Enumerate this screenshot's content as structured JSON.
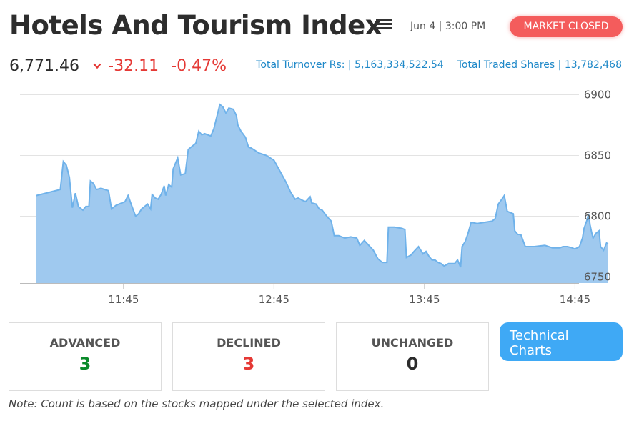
{
  "header": {
    "title": "Hotels And Tourism Index",
    "datetime": "Jun 4 | 3:00 PM",
    "status_badge": "MARKET CLOSED"
  },
  "price": {
    "value": "6,771.46",
    "change": "-32.11",
    "change_pct": "-0.47%"
  },
  "turnover": {
    "turnover_text": "Total Turnover Rs: | 5,163,334,522.54",
    "shares_text": "Total Traded Shares | 13,782,468"
  },
  "colors": {
    "negative": "#e53935",
    "positive": "#0a8a2a",
    "accent": "#3fa9f5",
    "badge": "#f45c5c",
    "area_fill": "#9fc9ef",
    "area_line": "#6fb2ea"
  },
  "chart_data": {
    "type": "area",
    "y_ticks": [
      6900,
      6850,
      6800,
      6750
    ],
    "ylim": [
      6745,
      6905
    ],
    "xlim": [
      11.1,
      14.9
    ],
    "x_ticks": [
      {
        "label": "11:45",
        "value": 11.75
      },
      {
        "label": "12:45",
        "value": 12.75
      },
      {
        "label": "13:45",
        "value": 13.75
      },
      {
        "label": "14:45",
        "value": 14.75
      }
    ],
    "points": [
      [
        11.17,
        6817
      ],
      [
        11.33,
        6822
      ],
      [
        11.35,
        6845
      ],
      [
        11.37,
        6842
      ],
      [
        11.39,
        6832
      ],
      [
        11.41,
        6807
      ],
      [
        11.43,
        6819
      ],
      [
        11.45,
        6808
      ],
      [
        11.48,
        6805
      ],
      [
        11.5,
        6808
      ],
      [
        11.52,
        6808
      ],
      [
        11.53,
        6829
      ],
      [
        11.55,
        6827
      ],
      [
        11.57,
        6822
      ],
      [
        11.6,
        6823
      ],
      [
        11.65,
        6821
      ],
      [
        11.67,
        6806
      ],
      [
        11.7,
        6809
      ],
      [
        11.76,
        6812
      ],
      [
        11.78,
        6817
      ],
      [
        11.8,
        6810
      ],
      [
        11.83,
        6800
      ],
      [
        11.85,
        6802
      ],
      [
        11.87,
        6806
      ],
      [
        11.91,
        6810
      ],
      [
        11.93,
        6806
      ],
      [
        11.94,
        6818
      ],
      [
        11.96,
        6815
      ],
      [
        11.98,
        6814
      ],
      [
        12.0,
        6818
      ],
      [
        12.02,
        6825
      ],
      [
        12.03,
        6817
      ],
      [
        12.05,
        6826
      ],
      [
        12.07,
        6824
      ],
      [
        12.08,
        6839
      ],
      [
        12.1,
        6845
      ],
      [
        12.11,
        6848
      ],
      [
        12.13,
        6834
      ],
      [
        12.16,
        6835
      ],
      [
        12.18,
        6855
      ],
      [
        12.21,
        6858
      ],
      [
        12.23,
        6860
      ],
      [
        12.25,
        6870
      ],
      [
        12.27,
        6867
      ],
      [
        12.29,
        6868
      ],
      [
        12.33,
        6866
      ],
      [
        12.35,
        6872
      ],
      [
        12.37,
        6882
      ],
      [
        12.39,
        6892
      ],
      [
        12.41,
        6890
      ],
      [
        12.43,
        6885
      ],
      [
        12.45,
        6889
      ],
      [
        12.48,
        6888
      ],
      [
        12.5,
        6883
      ],
      [
        12.51,
        6875
      ],
      [
        12.53,
        6870
      ],
      [
        12.56,
        6865
      ],
      [
        12.58,
        6857
      ],
      [
        12.6,
        6856
      ],
      [
        12.65,
        6852
      ],
      [
        12.7,
        6850
      ],
      [
        12.75,
        6846
      ],
      [
        12.79,
        6837
      ],
      [
        12.83,
        6828
      ],
      [
        12.86,
        6820
      ],
      [
        12.89,
        6814
      ],
      [
        12.91,
        6815
      ],
      [
        12.94,
        6813
      ],
      [
        12.96,
        6812
      ],
      [
        12.99,
        6816
      ],
      [
        13.0,
        6811
      ],
      [
        13.03,
        6810
      ],
      [
        13.05,
        6806
      ],
      [
        13.07,
        6805
      ],
      [
        13.1,
        6800
      ],
      [
        13.13,
        6796
      ],
      [
        13.15,
        6784
      ],
      [
        13.18,
        6784
      ],
      [
        13.2,
        6783
      ],
      [
        13.22,
        6782
      ],
      [
        13.26,
        6783
      ],
      [
        13.3,
        6782
      ],
      [
        13.32,
        6776
      ],
      [
        13.35,
        6780
      ],
      [
        13.38,
        6776
      ],
      [
        13.41,
        6772
      ],
      [
        13.44,
        6765
      ],
      [
        13.47,
        6762
      ],
      [
        13.5,
        6762
      ],
      [
        13.51,
        6791
      ],
      [
        13.55,
        6791
      ],
      [
        13.6,
        6790
      ],
      [
        13.62,
        6789
      ],
      [
        13.63,
        6766
      ],
      [
        13.66,
        6768
      ],
      [
        13.68,
        6771
      ],
      [
        13.71,
        6775
      ],
      [
        13.74,
        6769
      ],
      [
        13.76,
        6771
      ],
      [
        13.78,
        6767
      ],
      [
        13.8,
        6764
      ],
      [
        13.82,
        6764
      ],
      [
        13.84,
        6762
      ],
      [
        13.86,
        6761
      ],
      [
        13.88,
        6759
      ],
      [
        13.91,
        6761
      ],
      [
        13.95,
        6761
      ],
      [
        13.97,
        6764
      ],
      [
        13.99,
        6758
      ],
      [
        14.0,
        6775
      ],
      [
        14.02,
        6779
      ],
      [
        14.04,
        6786
      ],
      [
        14.06,
        6795
      ],
      [
        14.1,
        6794
      ],
      [
        14.15,
        6795
      ],
      [
        14.2,
        6796
      ],
      [
        14.22,
        6798
      ],
      [
        14.24,
        6810
      ],
      [
        14.27,
        6815
      ],
      [
        14.28,
        6817
      ],
      [
        14.3,
        6804
      ],
      [
        14.34,
        6802
      ],
      [
        14.35,
        6788
      ],
      [
        14.37,
        6785
      ],
      [
        14.39,
        6785
      ],
      [
        14.42,
        6775
      ],
      [
        14.48,
        6775
      ],
      [
        14.55,
        6776
      ],
      [
        14.6,
        6774
      ],
      [
        14.65,
        6774
      ],
      [
        14.67,
        6775
      ],
      [
        14.7,
        6775
      ],
      [
        14.73,
        6774
      ],
      [
        14.75,
        6773
      ],
      [
        14.78,
        6775
      ],
      [
        14.8,
        6782
      ],
      [
        14.81,
        6790
      ],
      [
        14.83,
        6797
      ],
      [
        14.84,
        6802
      ],
      [
        14.85,
        6793
      ],
      [
        14.86,
        6787
      ],
      [
        14.87,
        6782
      ],
      [
        14.89,
        6786
      ],
      [
        14.91,
        6788
      ],
      [
        14.92,
        6775
      ],
      [
        14.94,
        6772
      ],
      [
        14.96,
        6778
      ],
      [
        14.97,
        6777
      ]
    ]
  },
  "stats": {
    "advanced_label": "ADVANCED",
    "advanced_value": "3",
    "declined_label": "DECLINED",
    "declined_value": "3",
    "unchanged_label": "UNCHANGED",
    "unchanged_value": "0"
  },
  "tech_button": {
    "line1": "Technical",
    "line2": "Charts"
  },
  "note": "Note: Count is based on the stocks mapped under the selected index."
}
